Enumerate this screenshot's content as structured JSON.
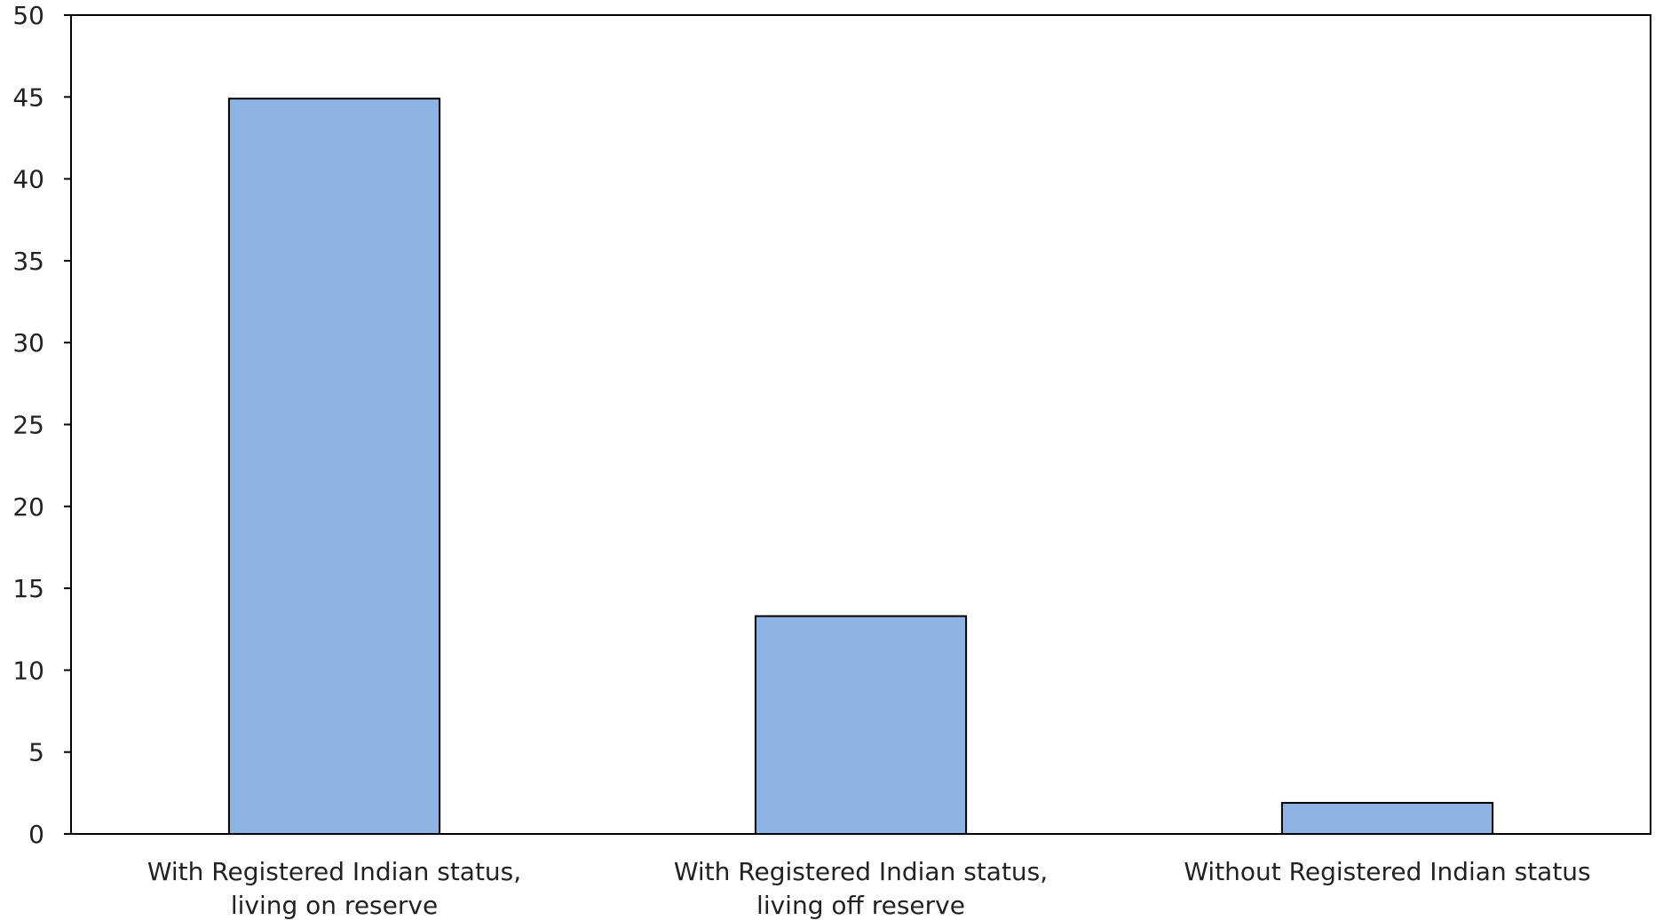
{
  "chart_data": {
    "type": "bar",
    "title": "",
    "xlabel": "",
    "ylabel": "",
    "categories": [
      [
        "With Registered Indian status,",
        "living on reserve"
      ],
      [
        "With Registered Indian status,",
        "living off reserve"
      ],
      [
        "Without Registered Indian status"
      ]
    ],
    "values": [
      44.9,
      13.3,
      1.9
    ],
    "ylim": [
      0,
      50
    ],
    "yticks": [
      "0",
      "5",
      "10",
      "15",
      "20",
      "25",
      "30",
      "35",
      "40",
      "45",
      "50"
    ],
    "grid": false,
    "legend": "none",
    "colors": {
      "bar_fill": "#8db3e2",
      "bar_stroke": "#000000",
      "axis": "#000000"
    }
  }
}
